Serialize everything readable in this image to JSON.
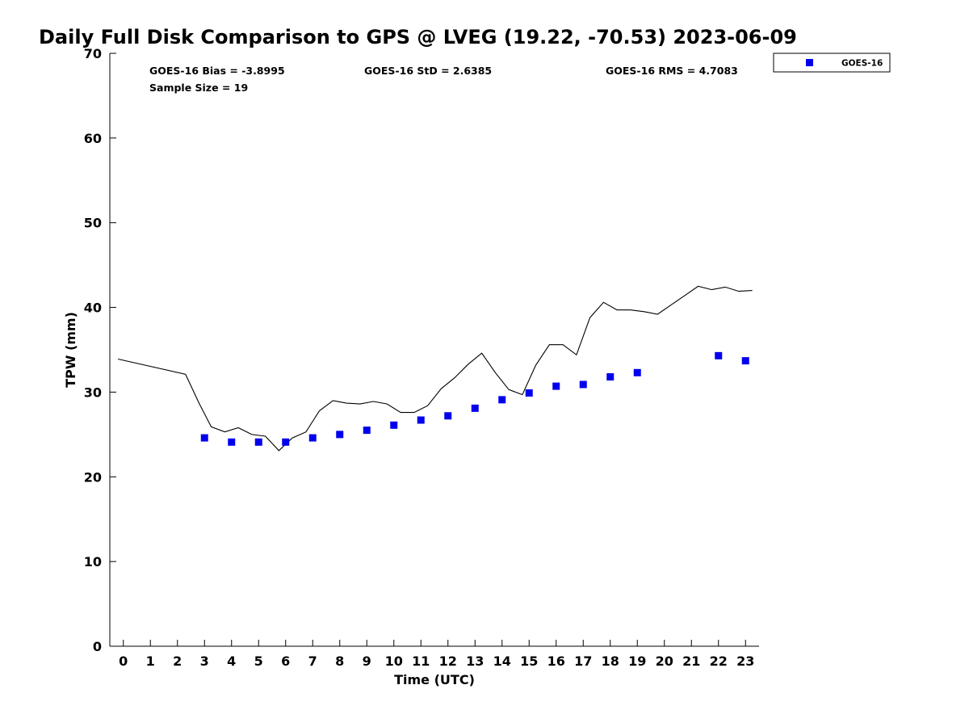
{
  "chart_data": {
    "type": "scatter",
    "title": "Daily Full Disk Comparison to GPS @ LVEG (19.22, -70.53) 2023-06-09",
    "xlabel": "Time (UTC)",
    "ylabel": "TPW (mm)",
    "xlim": [
      -0.5,
      23.5
    ],
    "ylim": [
      0,
      70
    ],
    "x_ticks": [
      0,
      1,
      2,
      3,
      4,
      5,
      6,
      7,
      8,
      9,
      10,
      11,
      12,
      13,
      14,
      15,
      16,
      17,
      18,
      19,
      20,
      21,
      22,
      23
    ],
    "y_ticks": [
      0,
      10,
      20,
      30,
      40,
      50,
      60,
      70
    ],
    "grid": false,
    "legend": {
      "position": "top-right",
      "entries": [
        "GOES-16"
      ]
    },
    "stats": {
      "bias": "GOES-16 Bias = -3.8995",
      "std": "GOES-16 StD = 2.6385",
      "rms": "GOES-16 RMS = 4.7083",
      "sample": "Sample Size = 19"
    },
    "series": [
      {
        "name": "GOES-16",
        "kind": "markers",
        "color": "#0000ee",
        "points": [
          {
            "x": 3,
            "y": 24.6
          },
          {
            "x": 4,
            "y": 24.1
          },
          {
            "x": 5,
            "y": 24.1
          },
          {
            "x": 6,
            "y": 24.1
          },
          {
            "x": 7,
            "y": 24.6
          },
          {
            "x": 8,
            "y": 25.0
          },
          {
            "x": 9,
            "y": 25.5
          },
          {
            "x": 10,
            "y": 26.1
          },
          {
            "x": 11,
            "y": 26.7
          },
          {
            "x": 12,
            "y": 27.2
          },
          {
            "x": 13,
            "y": 28.1
          },
          {
            "x": 14,
            "y": 29.1
          },
          {
            "x": 15,
            "y": 29.9
          },
          {
            "x": 16,
            "y": 30.7
          },
          {
            "x": 17,
            "y": 30.9
          },
          {
            "x": 18,
            "y": 31.8
          },
          {
            "x": 19,
            "y": 32.3
          },
          {
            "x": 22,
            "y": 34.3
          },
          {
            "x": 23,
            "y": 33.7
          }
        ]
      },
      {
        "kind": "line",
        "color": "#000000",
        "points": [
          {
            "x": -0.2,
            "y": 33.9
          },
          {
            "x": 2.3,
            "y": 32.1
          },
          {
            "x": 2.8,
            "y": 28.7
          },
          {
            "x": 3.25,
            "y": 25.9
          },
          {
            "x": 3.75,
            "y": 25.3
          },
          {
            "x": 4.25,
            "y": 25.8
          },
          {
            "x": 4.75,
            "y": 25.0
          },
          {
            "x": 5.25,
            "y": 24.8
          },
          {
            "x": 5.75,
            "y": 23.1
          },
          {
            "x": 6.25,
            "y": 24.6
          },
          {
            "x": 6.75,
            "y": 25.3
          },
          {
            "x": 7.25,
            "y": 27.8
          },
          {
            "x": 7.75,
            "y": 29.0
          },
          {
            "x": 8.25,
            "y": 28.7
          },
          {
            "x": 8.75,
            "y": 28.6
          },
          {
            "x": 9.25,
            "y": 28.9
          },
          {
            "x": 9.75,
            "y": 28.6
          },
          {
            "x": 10.25,
            "y": 27.6
          },
          {
            "x": 10.75,
            "y": 27.6
          },
          {
            "x": 11.25,
            "y": 28.4
          },
          {
            "x": 11.75,
            "y": 30.4
          },
          {
            "x": 12.25,
            "y": 31.7
          },
          {
            "x": 12.75,
            "y": 33.3
          },
          {
            "x": 13.25,
            "y": 34.6
          },
          {
            "x": 13.75,
            "y": 32.3
          },
          {
            "x": 14.25,
            "y": 30.3
          },
          {
            "x": 14.75,
            "y": 29.7
          },
          {
            "x": 15.25,
            "y": 33.2
          },
          {
            "x": 15.75,
            "y": 35.6
          },
          {
            "x": 16.25,
            "y": 35.6
          },
          {
            "x": 16.75,
            "y": 34.4
          },
          {
            "x": 17.25,
            "y": 38.8
          },
          {
            "x": 17.75,
            "y": 40.6
          },
          {
            "x": 18.25,
            "y": 39.7
          },
          {
            "x": 18.75,
            "y": 39.7
          },
          {
            "x": 19.25,
            "y": 39.5
          },
          {
            "x": 19.75,
            "y": 39.2
          },
          {
            "x": 20.25,
            "y": 40.3
          },
          {
            "x": 20.75,
            "y": 41.4
          },
          {
            "x": 21.25,
            "y": 42.5
          },
          {
            "x": 21.75,
            "y": 42.1
          },
          {
            "x": 22.25,
            "y": 42.4
          },
          {
            "x": 22.75,
            "y": 41.9
          },
          {
            "x": 23.25,
            "y": 42.0
          }
        ]
      }
    ]
  }
}
